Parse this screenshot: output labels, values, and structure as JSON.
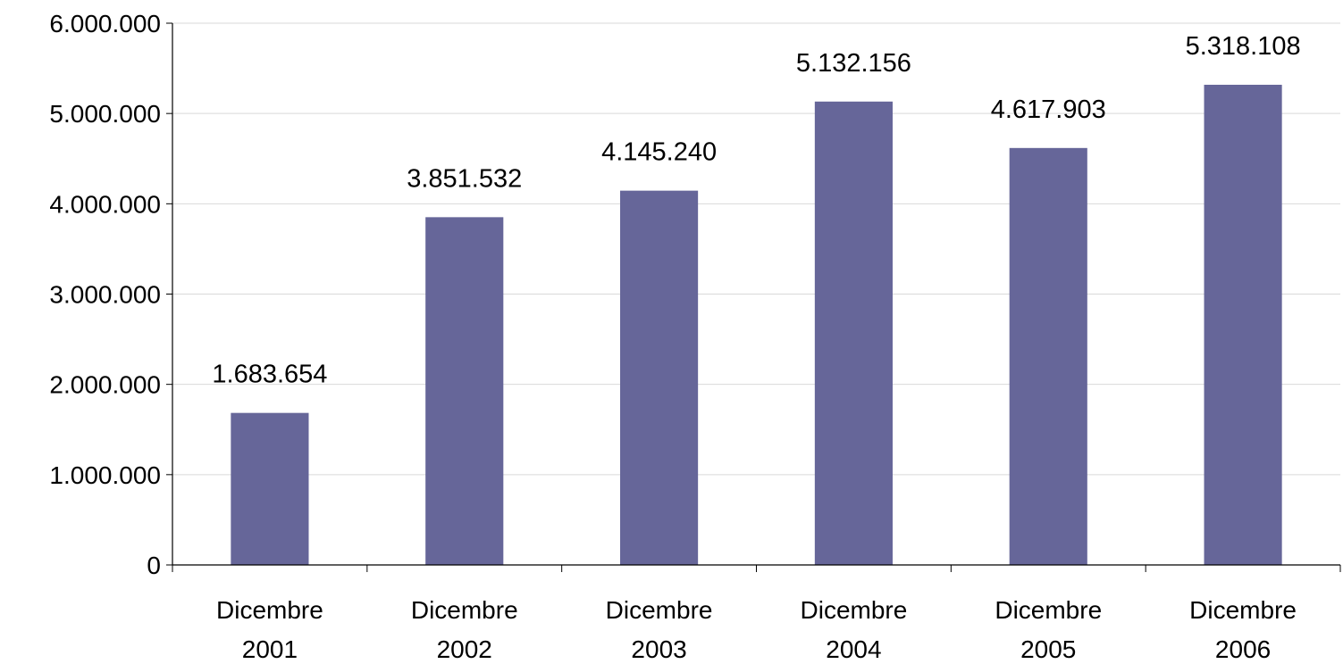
{
  "chart_data": {
    "type": "bar",
    "title": "",
    "xlabel": "",
    "ylabel": "",
    "categories": [
      [
        "Dicembre",
        "2001"
      ],
      [
        "Dicembre",
        "2002"
      ],
      [
        "Dicembre",
        "2003"
      ],
      [
        "Dicembre",
        "2004"
      ],
      [
        "Dicembre",
        "2005"
      ],
      [
        "Dicembre",
        "2006"
      ]
    ],
    "values": [
      1683654,
      3851532,
      4145240,
      5132156,
      4617903,
      5318108
    ],
    "data_labels": [
      "1.683.654",
      "3.851.532",
      "4.145.240",
      "5.132.156",
      "4.617.903",
      "5.318.108"
    ],
    "ylim": [
      0,
      6000000
    ],
    "yticks": [
      0,
      1000000,
      2000000,
      3000000,
      4000000,
      5000000,
      6000000
    ],
    "ytick_labels": [
      "0",
      "1.000.000",
      "2.000.000",
      "3.000.000",
      "4.000.000",
      "5.000.000",
      "6.000.000"
    ],
    "grid": true,
    "legend": "none",
    "colors": {
      "bar": "#666699",
      "grid": "#d9d9d9",
      "axis": "#000000",
      "text": "#000000"
    }
  }
}
